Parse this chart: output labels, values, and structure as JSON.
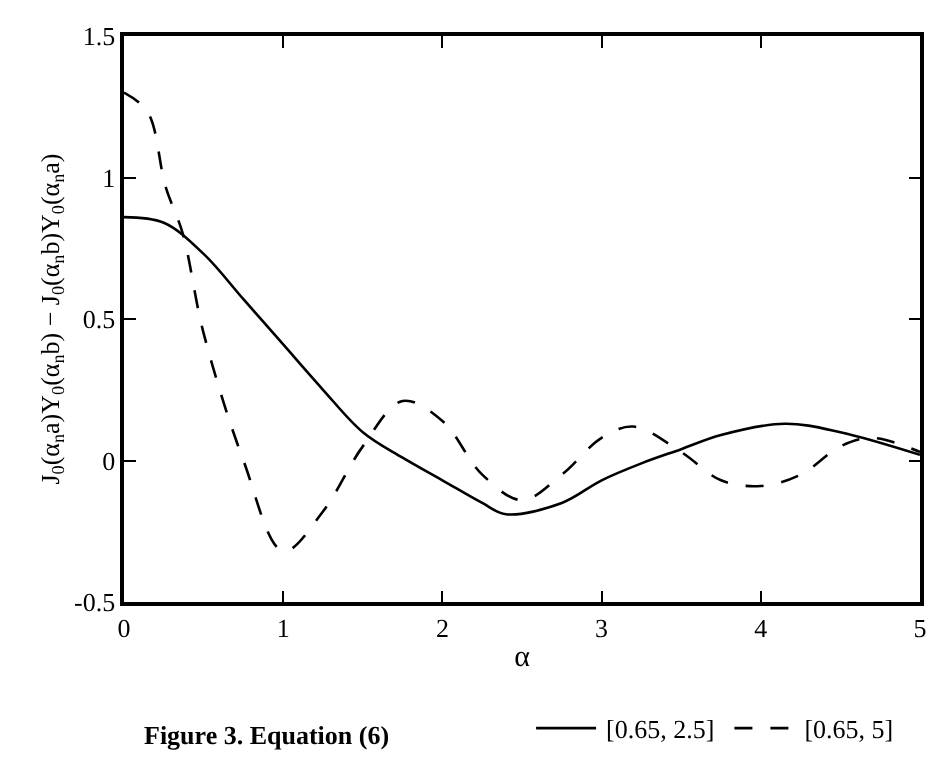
{
  "chart_data": {
    "type": "line",
    "xlabel": "α",
    "ylabel": "J$_{0}$(α$_{n}$a)Y$_{0}$(α$_{n}$b) − J$_{0}$(α$_{n}$b)Y$_{0}$(α$_{n}$a)",
    "annotations": [
      "Figure 3. Equation (6)"
    ],
    "xlim": [
      0,
      5
    ],
    "xticks": [
      0,
      1,
      2,
      3,
      4,
      5
    ],
    "ylim": [
      -0.5,
      1.5
    ],
    "yticks": [
      -0.5,
      0,
      0.5,
      1,
      1.5
    ],
    "legend": "bottom",
    "marker": "none",
    "series": [
      {
        "name": "[0.65, 2.5]",
        "color": "#000000",
        "line_style": "solid",
        "x": [
          0,
          0.25,
          0.5,
          0.75,
          1,
          1.25,
          1.5,
          1.75,
          2,
          2.25,
          2.4,
          2.75,
          3,
          3.25,
          3.5,
          3.75,
          4.15,
          4.5,
          5
        ],
        "values": [
          0.86,
          0.84,
          0.73,
          0.57,
          0.41,
          0.25,
          0.1,
          0.01,
          -0.07,
          -0.15,
          -0.19,
          -0.15,
          -0.07,
          -0.01,
          0.04,
          0.09,
          0.13,
          0.1,
          0.02
        ]
      },
      {
        "name": "[0.65, 5]",
        "color": "#000000",
        "line_style": "dashed",
        "x": [
          0,
          0.15,
          0.26,
          0.37,
          0.5,
          0.75,
          1,
          1.25,
          1.5,
          1.75,
          2,
          2.25,
          2.5,
          2.75,
          3,
          3.2,
          3.5,
          3.75,
          4,
          4.25,
          4.5,
          4.7,
          5
        ],
        "values": [
          1.3,
          1.23,
          0.97,
          0.8,
          0.45,
          0,
          -0.32,
          -0.18,
          0.05,
          0.21,
          0.14,
          -0.05,
          -0.14,
          -0.05,
          0.08,
          0.12,
          0.03,
          -0.07,
          -0.09,
          -0.05,
          0.05,
          0.08,
          0.03
        ]
      }
    ]
  }
}
